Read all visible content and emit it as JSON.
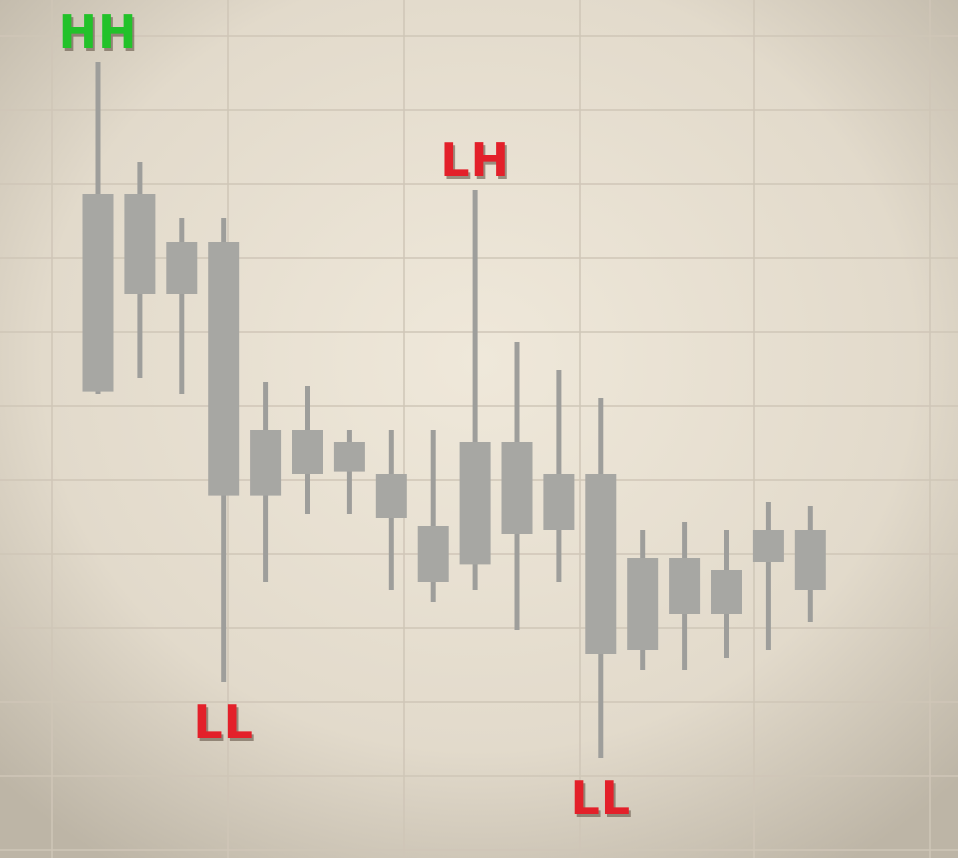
{
  "chart_data": {
    "type": "candlestick",
    "title": "",
    "xlabel": "",
    "ylabel": "",
    "ylim": [
      0,
      100
    ],
    "grid": true,
    "legend": "none",
    "colors": {
      "background_center": "#efe8da",
      "background_edge": "#c9c1b2",
      "grid": "#cfc6b7",
      "candle_body": "#a7a7a3",
      "candle_wick": "#9e9e9b",
      "higher_high": "#22c22a",
      "lower_label": "#e3202a"
    },
    "candles": [
      {
        "open": 79.5,
        "high": 96.0,
        "low": 54.5,
        "close": 54.8
      },
      {
        "open": 79.5,
        "high": 83.5,
        "low": 56.5,
        "close": 67.0
      },
      {
        "open": 73.5,
        "high": 76.5,
        "low": 54.5,
        "close": 67.0
      },
      {
        "open": 73.5,
        "high": 76.5,
        "low": 18.5,
        "close": 41.8
      },
      {
        "open": 50.0,
        "high": 56.0,
        "low": 31.0,
        "close": 41.8
      },
      {
        "open": 50.0,
        "high": 55.5,
        "low": 39.5,
        "close": 44.5
      },
      {
        "open": 48.5,
        "high": 50.0,
        "low": 39.5,
        "close": 44.8
      },
      {
        "open": 44.5,
        "high": 50.0,
        "low": 30.0,
        "close": 39.0
      },
      {
        "open": 38.0,
        "high": 50.0,
        "low": 28.5,
        "close": 31.0
      },
      {
        "open": 48.5,
        "high": 80.0,
        "low": 30.0,
        "close": 33.2
      },
      {
        "open": 48.5,
        "high": 61.0,
        "low": 25.0,
        "close": 37.0
      },
      {
        "open": 44.5,
        "high": 57.5,
        "low": 31.0,
        "close": 37.5
      },
      {
        "open": 44.5,
        "high": 54.0,
        "low": 9.0,
        "close": 22.0
      },
      {
        "open": 34.0,
        "high": 37.5,
        "low": 20.0,
        "close": 22.5
      },
      {
        "open": 34.0,
        "high": 38.5,
        "low": 20.0,
        "close": 27.0
      },
      {
        "open": 32.5,
        "high": 37.5,
        "low": 21.5,
        "close": 27.0
      },
      {
        "open": 37.5,
        "high": 41.0,
        "low": 22.5,
        "close": 33.5
      },
      {
        "open": 37.5,
        "high": 40.5,
        "low": 26.0,
        "close": 30.0
      }
    ],
    "annotations": [
      {
        "text": "HH",
        "candle_index": 0,
        "anchor": "high",
        "color": "#22c22a"
      },
      {
        "text": "LL",
        "candle_index": 3,
        "anchor": "low",
        "color": "#e3202a"
      },
      {
        "text": "LH",
        "candle_index": 9,
        "anchor": "high",
        "color": "#e3202a"
      },
      {
        "text": "LL",
        "candle_index": 12,
        "anchor": "low",
        "color": "#e3202a"
      }
    ]
  }
}
